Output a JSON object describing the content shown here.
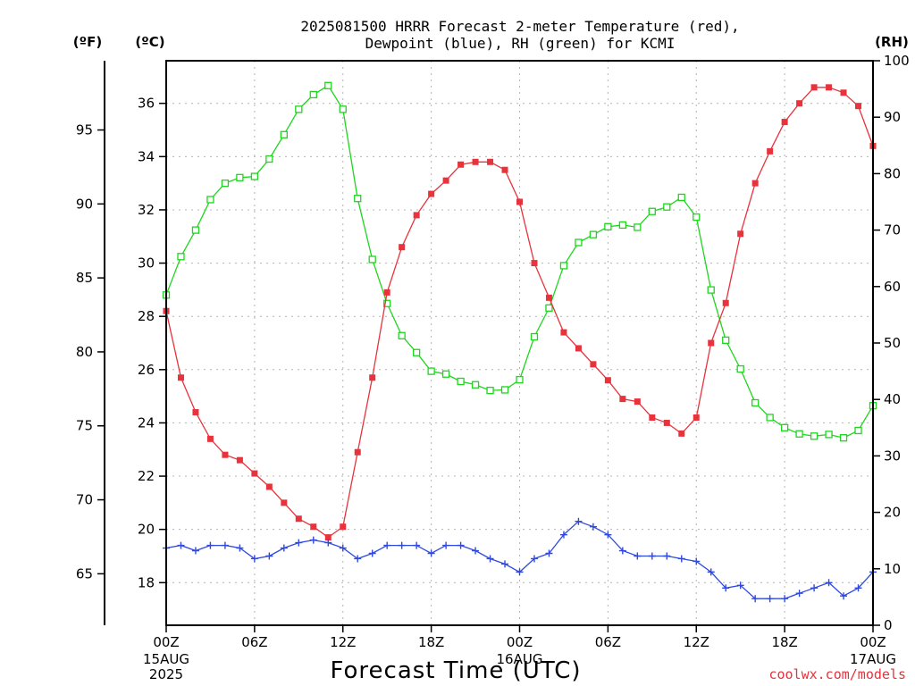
{
  "chart_data": {
    "type": "line",
    "title_line1": "2025081500 HRRR Forecast 2-meter Temperature (red),",
    "title_line2": "Dewpoint (blue), RH (green) for KCMI",
    "xlabel": "Forecast Time (UTC)",
    "credit": "coolwx.com/models",
    "unit_f": "(ºF)",
    "unit_c": "(ºC)",
    "unit_rh": "(RH)",
    "x_ticks": [
      "00Z",
      "06Z",
      "12Z",
      "18Z",
      "00Z",
      "06Z",
      "12Z",
      "18Z",
      "00Z"
    ],
    "date_labels": [
      {
        "tick_index": 0,
        "lines": [
          "15AUG",
          "2025"
        ]
      },
      {
        "tick_index": 4,
        "lines": [
          "16AUG"
        ]
      },
      {
        "tick_index": 8,
        "lines": [
          "17AUG"
        ]
      }
    ],
    "forecast_hours": [
      0,
      48
    ],
    "celsius_axis": {
      "ticks": [
        18,
        20,
        22,
        24,
        26,
        28,
        30,
        32,
        34,
        36
      ],
      "range": [
        16.4,
        37.6
      ]
    },
    "fahrenheit_axis": {
      "ticks": [
        65,
        70,
        75,
        80,
        85,
        90,
        95
      ]
    },
    "rh_axis": {
      "ticks": [
        0,
        10,
        20,
        30,
        40,
        50,
        60,
        70,
        80,
        90,
        100
      ],
      "range": [
        0,
        100
      ]
    },
    "series": [
      {
        "name": "Temperature",
        "axis": "celsius",
        "color": "#e8323c",
        "marker": "filled-square",
        "values": [
          28.2,
          25.7,
          24.4,
          23.4,
          22.8,
          22.6,
          22.1,
          21.6,
          21.0,
          20.4,
          20.1,
          19.7,
          20.1,
          22.9,
          25.7,
          28.9,
          30.6,
          31.8,
          32.6,
          33.1,
          33.7,
          33.8,
          33.8,
          33.5,
          32.3,
          30.0,
          28.7,
          27.4,
          26.8,
          26.2,
          25.6,
          24.9,
          24.8,
          24.2,
          24.0,
          23.6,
          24.2,
          27.0,
          28.5,
          31.1,
          33.0,
          34.2,
          35.3,
          36.0,
          36.6,
          36.6,
          36.4,
          35.9,
          34.4
        ]
      },
      {
        "name": "Dewpoint",
        "axis": "celsius",
        "color": "#2f49e0",
        "marker": "plus",
        "values": [
          19.3,
          19.4,
          19.2,
          19.4,
          19.4,
          19.3,
          18.9,
          19.0,
          19.3,
          19.5,
          19.6,
          19.5,
          19.3,
          18.9,
          19.1,
          19.4,
          19.4,
          19.4,
          19.1,
          19.4,
          19.4,
          19.2,
          18.9,
          18.7,
          18.4,
          18.9,
          19.1,
          19.8,
          20.3,
          20.1,
          19.8,
          19.2,
          19.0,
          19.0,
          19.0,
          18.9,
          18.8,
          18.4,
          17.8,
          17.9,
          17.4,
          17.4,
          17.4,
          17.6,
          17.8,
          18.0,
          17.5,
          17.8,
          18.4
        ]
      },
      {
        "name": "RH",
        "axis": "rh",
        "color": "#1ed61e",
        "marker": "open-square",
        "values": [
          58.5,
          65.3,
          70.0,
          75.4,
          78.3,
          79.3,
          79.5,
          82.6,
          86.9,
          91.4,
          94.0,
          95.6,
          91.4,
          75.6,
          64.8,
          57.0,
          51.3,
          48.3,
          45.0,
          44.5,
          43.2,
          42.6,
          41.6,
          41.7,
          43.5,
          51.1,
          56.2,
          63.7,
          67.8,
          69.2,
          70.6,
          70.9,
          70.5,
          73.3,
          74.1,
          75.8,
          72.3,
          59.4,
          50.5,
          45.4,
          39.4,
          36.8,
          35.0,
          33.9,
          33.5,
          33.8,
          33.2,
          34.5,
          38.9
        ]
      }
    ]
  }
}
